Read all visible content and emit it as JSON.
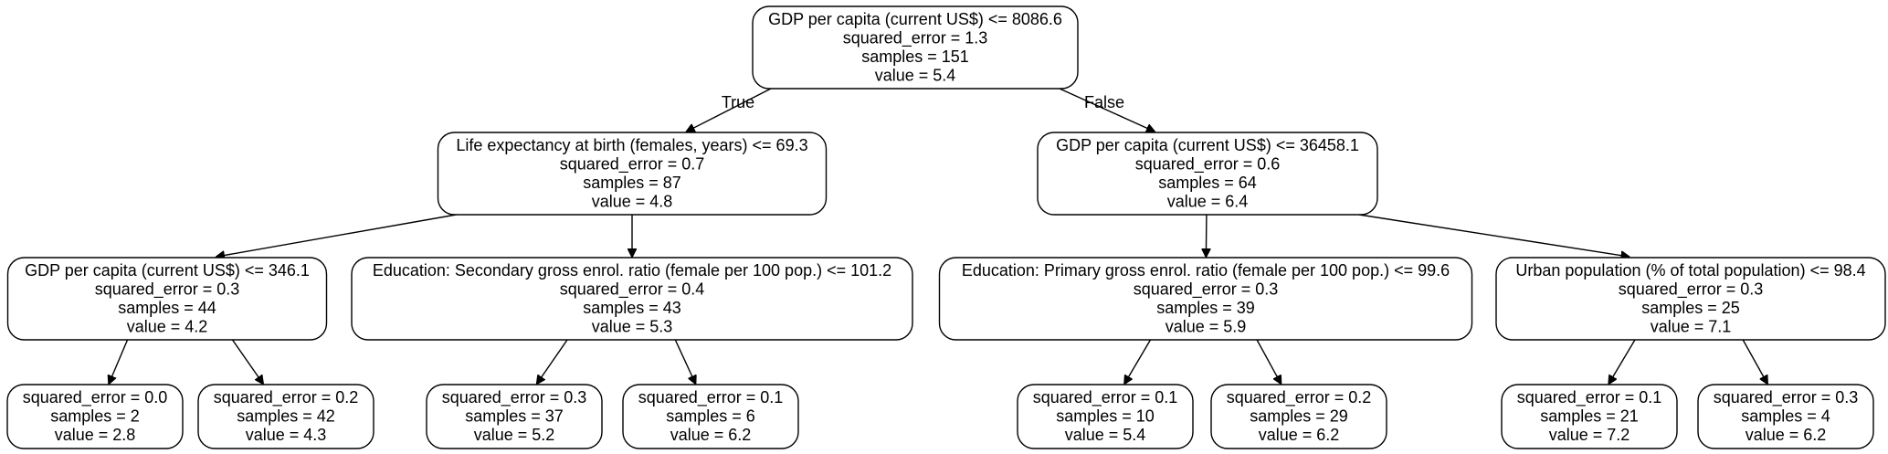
{
  "tree": {
    "root_edge_labels": {
      "left": "True",
      "right": "False"
    },
    "nodes": [
      {
        "id": "n0",
        "lines": [
          "GDP per capita (current US$) <= 8086.6",
          "squared_error = 1.3",
          "samples = 151",
          "value = 5.4"
        ]
      },
      {
        "id": "n1",
        "lines": [
          "Life expectancy at birth (females, years) <= 69.3",
          "squared_error = 0.7",
          "samples = 87",
          "value = 4.8"
        ]
      },
      {
        "id": "n2",
        "lines": [
          "GDP per capita (current US$) <= 36458.1",
          "squared_error = 0.6",
          "samples = 64",
          "value = 6.4"
        ]
      },
      {
        "id": "n3",
        "lines": [
          "GDP per capita (current US$) <= 346.1",
          "squared_error = 0.3",
          "samples = 44",
          "value = 4.2"
        ]
      },
      {
        "id": "n4",
        "lines": [
          "Education: Secondary gross enrol. ratio (female per 100 pop.) <= 101.2",
          "squared_error = 0.4",
          "samples = 43",
          "value = 5.3"
        ]
      },
      {
        "id": "n5",
        "lines": [
          "Education: Primary gross enrol. ratio (female per 100 pop.) <= 99.6",
          "squared_error = 0.3",
          "samples = 39",
          "value = 5.9"
        ]
      },
      {
        "id": "n6",
        "lines": [
          "Urban population (% of total population) <= 98.4",
          "squared_error = 0.3",
          "samples = 25",
          "value = 7.1"
        ]
      },
      {
        "id": "n7",
        "lines": [
          "squared_error = 0.0",
          "samples = 2",
          "value = 2.8"
        ]
      },
      {
        "id": "n8",
        "lines": [
          "squared_error = 0.2",
          "samples = 42",
          "value = 4.3"
        ]
      },
      {
        "id": "n9",
        "lines": [
          "squared_error = 0.3",
          "samples = 37",
          "value = 5.2"
        ]
      },
      {
        "id": "n10",
        "lines": [
          "squared_error = 0.1",
          "samples = 6",
          "value = 6.2"
        ]
      },
      {
        "id": "n11",
        "lines": [
          "squared_error = 0.1",
          "samples = 10",
          "value = 5.4"
        ]
      },
      {
        "id": "n12",
        "lines": [
          "squared_error = 0.2",
          "samples = 29",
          "value = 6.2"
        ]
      },
      {
        "id": "n13",
        "lines": [
          "squared_error = 0.1",
          "samples = 21",
          "value = 7.2"
        ]
      },
      {
        "id": "n14",
        "lines": [
          "squared_error = 0.3",
          "samples = 4",
          "value = 6.2"
        ]
      }
    ],
    "edges": [
      {
        "from": "n0",
        "to": "n1"
      },
      {
        "from": "n0",
        "to": "n2"
      },
      {
        "from": "n1",
        "to": "n3"
      },
      {
        "from": "n1",
        "to": "n4"
      },
      {
        "from": "n2",
        "to": "n5"
      },
      {
        "from": "n2",
        "to": "n6"
      },
      {
        "from": "n3",
        "to": "n7"
      },
      {
        "from": "n3",
        "to": "n8"
      },
      {
        "from": "n4",
        "to": "n9"
      },
      {
        "from": "n4",
        "to": "n10"
      },
      {
        "from": "n5",
        "to": "n11"
      },
      {
        "from": "n5",
        "to": "n12"
      },
      {
        "from": "n6",
        "to": "n13"
      },
      {
        "from": "n6",
        "to": "n14"
      }
    ]
  }
}
